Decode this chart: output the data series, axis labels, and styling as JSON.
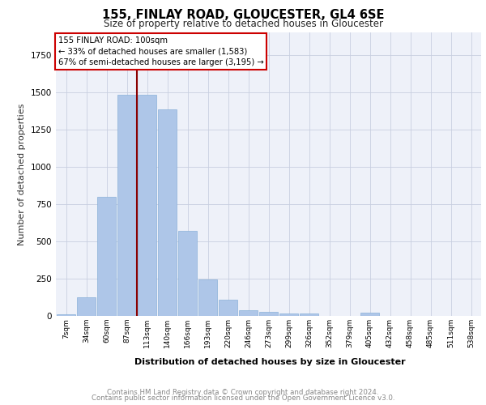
{
  "title": "155, FINLAY ROAD, GLOUCESTER, GL4 6SE",
  "subtitle": "Size of property relative to detached houses in Gloucester",
  "xlabel": "Distribution of detached houses by size in Gloucester",
  "ylabel": "Number of detached properties",
  "bar_labels": [
    "7sqm",
    "34sqm",
    "60sqm",
    "87sqm",
    "113sqm",
    "140sqm",
    "166sqm",
    "193sqm",
    "220sqm",
    "246sqm",
    "273sqm",
    "299sqm",
    "326sqm",
    "352sqm",
    "379sqm",
    "405sqm",
    "432sqm",
    "458sqm",
    "485sqm",
    "511sqm",
    "538sqm"
  ],
  "bar_values": [
    10,
    125,
    800,
    1480,
    1480,
    1385,
    570,
    245,
    110,
    40,
    28,
    18,
    18,
    0,
    0,
    20,
    0,
    0,
    0,
    0,
    0
  ],
  "bar_color": "#aec6e8",
  "bar_edge_color": "#8ab0d8",
  "vline_x": 3.5,
  "vline_color": "#8b0000",
  "annotation_title": "155 FINLAY ROAD: 100sqm",
  "annotation_line1": "← 33% of detached houses are smaller (1,583)",
  "annotation_line2": "67% of semi-detached houses are larger (3,195) →",
  "annotation_box_color": "#ffffff",
  "annotation_box_edge": "#cc0000",
  "ylim": [
    0,
    1900
  ],
  "footer1": "Contains HM Land Registry data © Crown copyright and database right 2024.",
  "footer2": "Contains public sector information licensed under the Open Government Licence v3.0.",
  "plot_bg_color": "#eef1f9"
}
